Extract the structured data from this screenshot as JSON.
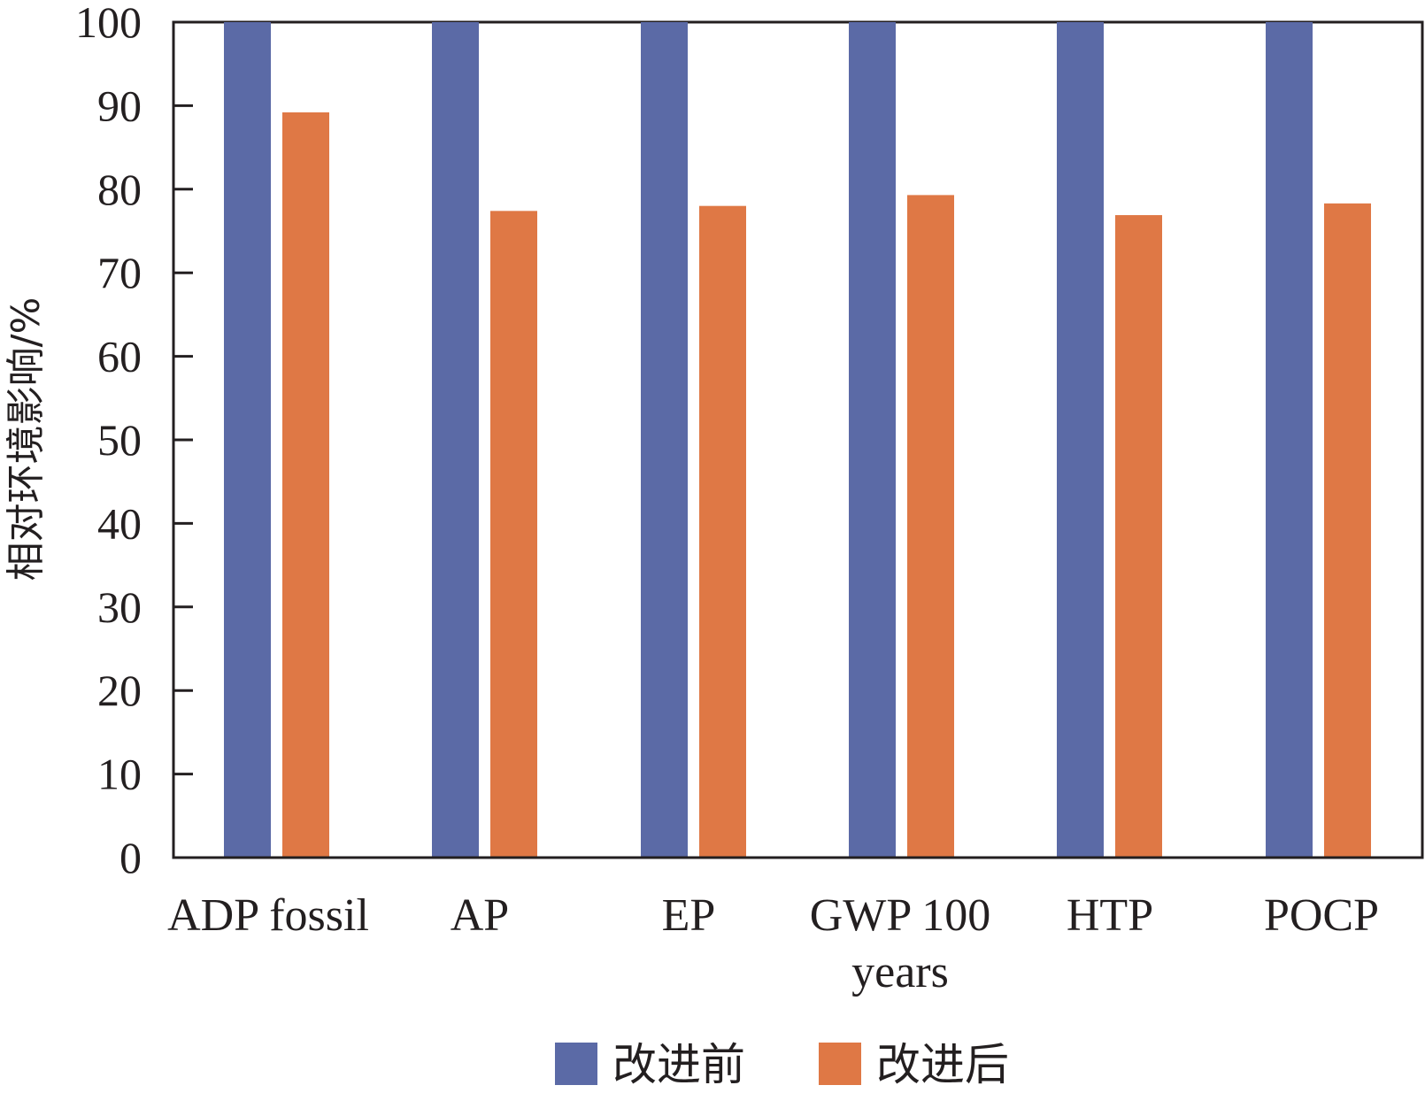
{
  "chart_data": {
    "type": "bar",
    "categories": [
      [
        "ADP fossil"
      ],
      [
        "AP"
      ],
      [
        "EP"
      ],
      [
        "GWP 100",
        "years"
      ],
      [
        "HTP"
      ],
      [
        "POCP"
      ]
    ],
    "series": [
      {
        "name": "改进前",
        "values": [
          100,
          100,
          100,
          100,
          100,
          100
        ]
      },
      {
        "name": "改进后",
        "values": [
          89.2,
          77.4,
          78.0,
          79.3,
          76.9,
          78.3
        ]
      }
    ],
    "ylabel": "相对环境影响/%",
    "xlabel": "",
    "ylim": [
      0,
      100
    ],
    "yticks": [
      "0",
      "10",
      "20",
      "30",
      "40",
      "50",
      "60",
      "70",
      "80",
      "90",
      "100"
    ],
    "grid": false,
    "legend_position": "bottom-center",
    "colors": {
      "before": "#5b6aa6",
      "after": "#df7845",
      "axis": "#231f20"
    }
  }
}
